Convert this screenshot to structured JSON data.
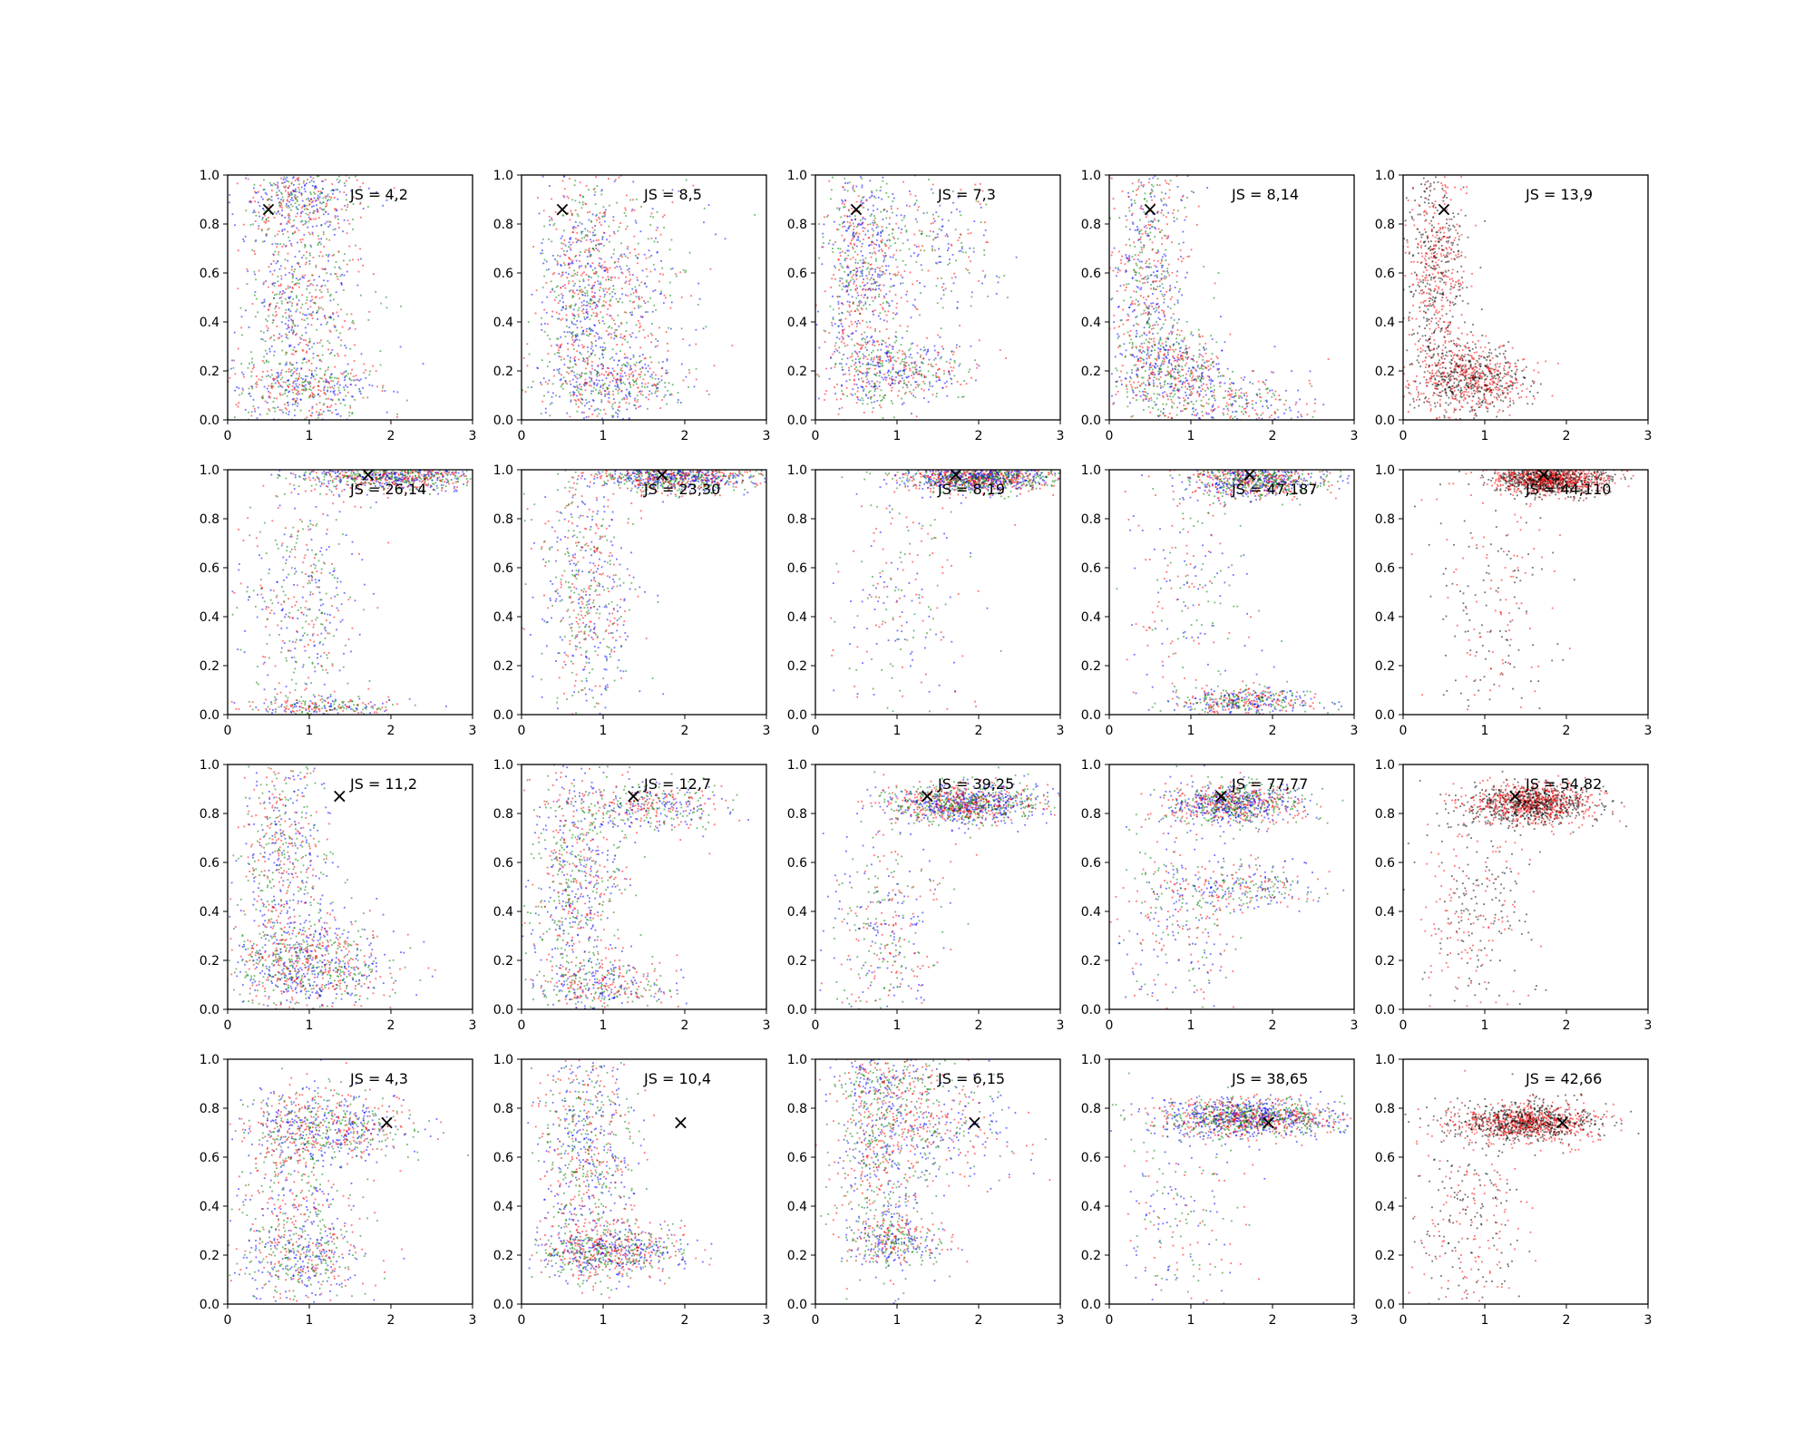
{
  "figure": {
    "background": "#ffffff",
    "series_colors": [
      "#0000ff",
      "#ff0000",
      "#008000",
      "#000000"
    ],
    "marker_symbol": "×"
  },
  "chart_data": [
    {
      "type": "scatter",
      "annotation": "JS = 4,2",
      "marker": [
        0.5,
        0.86
      ],
      "xlim": [
        0,
        3
      ],
      "ylim": [
        0,
        1
      ],
      "xticks": [
        "0",
        "1",
        "2",
        "3"
      ],
      "yticks": [
        "0.0",
        "0.2",
        "0.4",
        "0.6",
        "0.8",
        "1.0"
      ],
      "series_colors": [
        "#0000ff",
        "#ff0000",
        "#008000"
      ],
      "clusters": [
        {
          "cx": 0.9,
          "cy": 0.5,
          "sx": 0.35,
          "sy": 0.3,
          "share": 0.55
        },
        {
          "cx": 1.0,
          "cy": 0.13,
          "sx": 0.45,
          "sy": 0.07,
          "share": 0.25
        },
        {
          "cx": 0.9,
          "cy": 0.9,
          "sx": 0.4,
          "sy": 0.06,
          "share": 0.2
        }
      ]
    },
    {
      "type": "scatter",
      "annotation": "JS = 8,5",
      "marker": [
        0.5,
        0.86
      ],
      "xlim": [
        0,
        3
      ],
      "ylim": [
        0,
        1
      ],
      "xticks": [
        "0",
        "1",
        "2",
        "3"
      ],
      "yticks": [
        "0.0",
        "0.2",
        "0.4",
        "0.6",
        "0.8",
        "1.0"
      ],
      "series_colors": [
        "#0000ff",
        "#ff0000",
        "#008000"
      ],
      "clusters": [
        {
          "cx": 0.8,
          "cy": 0.5,
          "sx": 0.3,
          "sy": 0.3,
          "share": 0.6
        },
        {
          "cx": 1.1,
          "cy": 0.15,
          "sx": 0.45,
          "sy": 0.06,
          "share": 0.25
        },
        {
          "cx": 1.5,
          "cy": 0.55,
          "sx": 0.4,
          "sy": 0.2,
          "share": 0.15
        }
      ]
    },
    {
      "type": "scatter",
      "annotation": "JS = 7,3",
      "marker": [
        0.5,
        0.86
      ],
      "xlim": [
        0,
        3
      ],
      "ylim": [
        0,
        1
      ],
      "xticks": [
        "0",
        "1",
        "2",
        "3"
      ],
      "yticks": [
        "0.0",
        "0.2",
        "0.4",
        "0.6",
        "0.8",
        "1.0"
      ],
      "series_colors": [
        "#0000ff",
        "#ff0000",
        "#008000"
      ],
      "clusters": [
        {
          "cx": 0.6,
          "cy": 0.6,
          "sx": 0.25,
          "sy": 0.3,
          "share": 0.55
        },
        {
          "cx": 1.0,
          "cy": 0.2,
          "sx": 0.45,
          "sy": 0.07,
          "share": 0.3
        },
        {
          "cx": 1.5,
          "cy": 0.7,
          "sx": 0.4,
          "sy": 0.15,
          "share": 0.15
        }
      ]
    },
    {
      "type": "scatter",
      "annotation": "JS = 8,14",
      "marker": [
        0.5,
        0.86
      ],
      "xlim": [
        0,
        3
      ],
      "ylim": [
        0,
        1
      ],
      "xticks": [
        "0",
        "1",
        "2",
        "3"
      ],
      "yticks": [
        "0.0",
        "0.2",
        "0.4",
        "0.6",
        "0.8",
        "1.0"
      ],
      "series_colors": [
        "#0000ff",
        "#ff0000",
        "#008000"
      ],
      "clusters": [
        {
          "cx": 0.5,
          "cy": 0.6,
          "sx": 0.25,
          "sy": 0.3,
          "share": 0.5
        },
        {
          "cx": 0.8,
          "cy": 0.2,
          "sx": 0.35,
          "sy": 0.08,
          "share": 0.3
        },
        {
          "cx": 1.5,
          "cy": 0.08,
          "sx": 0.5,
          "sy": 0.06,
          "share": 0.2
        }
      ]
    },
    {
      "type": "scatter",
      "annotation": "JS = 13,9",
      "marker": [
        0.5,
        0.86
      ],
      "xlim": [
        0,
        3
      ],
      "ylim": [
        0,
        1
      ],
      "xticks": [
        "0",
        "1",
        "2",
        "3"
      ],
      "yticks": [
        "0.0",
        "0.2",
        "0.4",
        "0.6",
        "0.8",
        "1.0"
      ],
      "series_colors": [
        "#ff0000",
        "#000000"
      ],
      "clusters": [
        {
          "cx": 0.4,
          "cy": 0.6,
          "sx": 0.2,
          "sy": 0.25,
          "share": 0.45
        },
        {
          "cx": 0.8,
          "cy": 0.17,
          "sx": 0.35,
          "sy": 0.07,
          "share": 0.55
        }
      ]
    },
    {
      "type": "scatter",
      "annotation": "JS = 26,14",
      "marker": [
        1.72,
        0.98
      ],
      "xlim": [
        0,
        3
      ],
      "ylim": [
        0,
        1
      ],
      "xticks": [
        "0",
        "1",
        "2",
        "3"
      ],
      "yticks": [
        "0.0",
        "0.2",
        "0.4",
        "0.6",
        "0.8",
        "1.0"
      ],
      "series_colors": [
        "#0000ff",
        "#ff0000",
        "#008000"
      ],
      "clusters": [
        {
          "cx": 2.0,
          "cy": 0.97,
          "sx": 0.55,
          "sy": 0.03,
          "share": 0.55
        },
        {
          "cx": 0.9,
          "cy": 0.45,
          "sx": 0.35,
          "sy": 0.28,
          "share": 0.3
        },
        {
          "cx": 1.2,
          "cy": 0.03,
          "sx": 0.5,
          "sy": 0.02,
          "share": 0.15
        }
      ]
    },
    {
      "type": "scatter",
      "annotation": "JS = 23,30",
      "marker": [
        1.72,
        0.98
      ],
      "xlim": [
        0,
        3
      ],
      "ylim": [
        0,
        1
      ],
      "xticks": [
        "0",
        "1",
        "2",
        "3"
      ],
      "yticks": [
        "0.0",
        "0.2",
        "0.4",
        "0.6",
        "0.8",
        "1.0"
      ],
      "series_colors": [
        "#0000ff",
        "#ff0000",
        "#008000"
      ],
      "clusters": [
        {
          "cx": 1.9,
          "cy": 0.97,
          "sx": 0.5,
          "sy": 0.03,
          "share": 0.6
        },
        {
          "cx": 0.8,
          "cy": 0.5,
          "sx": 0.3,
          "sy": 0.28,
          "share": 0.4
        }
      ]
    },
    {
      "type": "scatter",
      "annotation": "JS = 8,19",
      "marker": [
        1.72,
        0.98
      ],
      "xlim": [
        0,
        3
      ],
      "ylim": [
        0,
        1
      ],
      "xticks": [
        "0",
        "1",
        "2",
        "3"
      ],
      "yticks": [
        "0.0",
        "0.2",
        "0.4",
        "0.6",
        "0.8",
        "1.0"
      ],
      "series_colors": [
        "#008000",
        "#0000ff",
        "#ff0000"
      ],
      "clusters": [
        {
          "cx": 2.0,
          "cy": 0.97,
          "sx": 0.45,
          "sy": 0.03,
          "share": 0.85
        },
        {
          "cx": 1.0,
          "cy": 0.5,
          "sx": 0.45,
          "sy": 0.3,
          "share": 0.15
        }
      ]
    },
    {
      "type": "scatter",
      "annotation": "JS = 47,187",
      "marker": [
        1.72,
        0.98
      ],
      "xlim": [
        0,
        3
      ],
      "ylim": [
        0,
        1
      ],
      "xticks": [
        "0",
        "1",
        "2",
        "3"
      ],
      "yticks": [
        "0.0",
        "0.2",
        "0.4",
        "0.6",
        "0.8",
        "1.0"
      ],
      "series_colors": [
        "#ff0000",
        "#0000ff",
        "#008000"
      ],
      "clusters": [
        {
          "cx": 1.8,
          "cy": 0.96,
          "sx": 0.4,
          "sy": 0.035,
          "share": 0.55
        },
        {
          "cx": 1.7,
          "cy": 0.05,
          "sx": 0.45,
          "sy": 0.03,
          "share": 0.3
        },
        {
          "cx": 1.0,
          "cy": 0.5,
          "sx": 0.4,
          "sy": 0.3,
          "share": 0.15
        }
      ]
    },
    {
      "type": "scatter",
      "annotation": "JS = 44,110",
      "marker": [
        1.72,
        0.98
      ],
      "xlim": [
        0,
        3
      ],
      "ylim": [
        0,
        1
      ],
      "xticks": [
        "0",
        "1",
        "2",
        "3"
      ],
      "yticks": [
        "0.0",
        "0.2",
        "0.4",
        "0.6",
        "0.8",
        "1.0"
      ],
      "series_colors": [
        "#ff0000",
        "#000000"
      ],
      "clusters": [
        {
          "cx": 1.8,
          "cy": 0.96,
          "sx": 0.35,
          "sy": 0.03,
          "share": 0.85
        },
        {
          "cx": 1.1,
          "cy": 0.4,
          "sx": 0.4,
          "sy": 0.3,
          "share": 0.15
        }
      ]
    },
    {
      "type": "scatter",
      "annotation": "JS = 11,2",
      "marker": [
        1.37,
        0.87
      ],
      "xlim": [
        0,
        3
      ],
      "ylim": [
        0,
        1
      ],
      "xticks": [
        "0",
        "1",
        "2",
        "3"
      ],
      "yticks": [
        "0.0",
        "0.2",
        "0.4",
        "0.6",
        "0.8",
        "1.0"
      ],
      "series_colors": [
        "#0000ff",
        "#ff0000",
        "#008000"
      ],
      "clusters": [
        {
          "cx": 0.7,
          "cy": 0.6,
          "sx": 0.3,
          "sy": 0.28,
          "share": 0.45
        },
        {
          "cx": 1.0,
          "cy": 0.17,
          "sx": 0.5,
          "sy": 0.09,
          "share": 0.55
        }
      ]
    },
    {
      "type": "scatter",
      "annotation": "JS = 12,7",
      "marker": [
        1.37,
        0.87
      ],
      "xlim": [
        0,
        3
      ],
      "ylim": [
        0,
        1
      ],
      "xticks": [
        "0",
        "1",
        "2",
        "3"
      ],
      "yticks": [
        "0.0",
        "0.2",
        "0.4",
        "0.6",
        "0.8",
        "1.0"
      ],
      "series_colors": [
        "#0000ff",
        "#ff0000",
        "#008000"
      ],
      "clusters": [
        {
          "cx": 0.7,
          "cy": 0.5,
          "sx": 0.3,
          "sy": 0.3,
          "share": 0.55
        },
        {
          "cx": 1.6,
          "cy": 0.83,
          "sx": 0.45,
          "sy": 0.05,
          "share": 0.25
        },
        {
          "cx": 1.0,
          "cy": 0.1,
          "sx": 0.4,
          "sy": 0.05,
          "share": 0.2
        }
      ]
    },
    {
      "type": "scatter",
      "annotation": "JS = 39,25",
      "marker": [
        1.37,
        0.87
      ],
      "xlim": [
        0,
        3
      ],
      "ylim": [
        0,
        1
      ],
      "xticks": [
        "0",
        "1",
        "2",
        "3"
      ],
      "yticks": [
        "0.0",
        "0.2",
        "0.4",
        "0.6",
        "0.8",
        "1.0"
      ],
      "series_colors": [
        "#0000ff",
        "#ff0000",
        "#008000"
      ],
      "clusters": [
        {
          "cx": 1.8,
          "cy": 0.84,
          "sx": 0.5,
          "sy": 0.04,
          "share": 0.75
        },
        {
          "cx": 0.9,
          "cy": 0.3,
          "sx": 0.35,
          "sy": 0.22,
          "share": 0.25
        }
      ]
    },
    {
      "type": "scatter",
      "annotation": "JS = 77,77",
      "marker": [
        1.37,
        0.87
      ],
      "xlim": [
        0,
        3
      ],
      "ylim": [
        0,
        1
      ],
      "xticks": [
        "0",
        "1",
        "2",
        "3"
      ],
      "yticks": [
        "0.0",
        "0.2",
        "0.4",
        "0.6",
        "0.8",
        "1.0"
      ],
      "series_colors": [
        "#0000ff",
        "#ff0000",
        "#008000"
      ],
      "clusters": [
        {
          "cx": 1.5,
          "cy": 0.84,
          "sx": 0.4,
          "sy": 0.04,
          "share": 0.6
        },
        {
          "cx": 1.6,
          "cy": 0.5,
          "sx": 0.45,
          "sy": 0.05,
          "share": 0.2
        },
        {
          "cx": 0.8,
          "cy": 0.35,
          "sx": 0.35,
          "sy": 0.25,
          "share": 0.2
        }
      ]
    },
    {
      "type": "scatter",
      "annotation": "JS = 54,82",
      "marker": [
        1.37,
        0.87
      ],
      "xlim": [
        0,
        3
      ],
      "ylim": [
        0,
        1
      ],
      "xticks": [
        "0",
        "1",
        "2",
        "3"
      ],
      "yticks": [
        "0.0",
        "0.2",
        "0.4",
        "0.6",
        "0.8",
        "1.0"
      ],
      "series_colors": [
        "#ff0000",
        "#000000"
      ],
      "clusters": [
        {
          "cx": 1.6,
          "cy": 0.84,
          "sx": 0.4,
          "sy": 0.04,
          "share": 0.8
        },
        {
          "cx": 0.9,
          "cy": 0.4,
          "sx": 0.35,
          "sy": 0.25,
          "share": 0.2
        }
      ]
    },
    {
      "type": "scatter",
      "annotation": "JS = 4,3",
      "marker": [
        1.95,
        0.74
      ],
      "xlim": [
        0,
        3
      ],
      "ylim": [
        0,
        1
      ],
      "xticks": [
        "0",
        "1",
        "2",
        "3"
      ],
      "yticks": [
        "0.0",
        "0.2",
        "0.4",
        "0.6",
        "0.8",
        "1.0"
      ],
      "series_colors": [
        "#0000ff",
        "#ff0000",
        "#008000"
      ],
      "clusters": [
        {
          "cx": 1.2,
          "cy": 0.72,
          "sx": 0.5,
          "sy": 0.07,
          "share": 0.45
        },
        {
          "cx": 0.8,
          "cy": 0.4,
          "sx": 0.35,
          "sy": 0.25,
          "share": 0.35
        },
        {
          "cx": 1.0,
          "cy": 0.18,
          "sx": 0.4,
          "sy": 0.07,
          "share": 0.2
        }
      ]
    },
    {
      "type": "scatter",
      "annotation": "JS = 10,4",
      "marker": [
        1.95,
        0.74
      ],
      "xlim": [
        0,
        3
      ],
      "ylim": [
        0,
        1
      ],
      "xticks": [
        "0",
        "1",
        "2",
        "3"
      ],
      "yticks": [
        "0.0",
        "0.2",
        "0.4",
        "0.6",
        "0.8",
        "1.0"
      ],
      "series_colors": [
        "#0000ff",
        "#ff0000",
        "#008000"
      ],
      "clusters": [
        {
          "cx": 0.8,
          "cy": 0.6,
          "sx": 0.3,
          "sy": 0.28,
          "share": 0.55
        },
        {
          "cx": 1.1,
          "cy": 0.22,
          "sx": 0.45,
          "sy": 0.05,
          "share": 0.45
        }
      ]
    },
    {
      "type": "scatter",
      "annotation": "JS = 6,15",
      "marker": [
        1.95,
        0.74
      ],
      "xlim": [
        0,
        3
      ],
      "ylim": [
        0,
        1
      ],
      "xticks": [
        "0",
        "1",
        "2",
        "3"
      ],
      "yticks": [
        "0.0",
        "0.2",
        "0.4",
        "0.6",
        "0.8",
        "1.0"
      ],
      "series_colors": [
        "#0000ff",
        "#ff0000",
        "#008000"
      ],
      "clusters": [
        {
          "cx": 0.8,
          "cy": 0.6,
          "sx": 0.3,
          "sy": 0.25,
          "share": 0.45
        },
        {
          "cx": 1.0,
          "cy": 0.25,
          "sx": 0.3,
          "sy": 0.05,
          "share": 0.2
        },
        {
          "cx": 1.5,
          "cy": 0.7,
          "sx": 0.45,
          "sy": 0.1,
          "share": 0.2
        },
        {
          "cx": 0.9,
          "cy": 0.92,
          "sx": 0.4,
          "sy": 0.05,
          "share": 0.15
        }
      ]
    },
    {
      "type": "scatter",
      "annotation": "JS = 38,65",
      "marker": [
        1.95,
        0.74
      ],
      "xlim": [
        0,
        3
      ],
      "ylim": [
        0,
        1
      ],
      "xticks": [
        "0",
        "1",
        "2",
        "3"
      ],
      "yticks": [
        "0.0",
        "0.2",
        "0.4",
        "0.6",
        "0.8",
        "1.0"
      ],
      "series_colors": [
        "#0000ff",
        "#008000",
        "#ff0000"
      ],
      "clusters": [
        {
          "cx": 1.7,
          "cy": 0.76,
          "sx": 0.55,
          "sy": 0.04,
          "share": 0.85
        },
        {
          "cx": 0.9,
          "cy": 0.35,
          "sx": 0.4,
          "sy": 0.25,
          "share": 0.15
        }
      ]
    },
    {
      "type": "scatter",
      "annotation": "JS = 42,66",
      "marker": [
        1.95,
        0.74
      ],
      "xlim": [
        0,
        3
      ],
      "ylim": [
        0,
        1
      ],
      "xticks": [
        "0",
        "1",
        "2",
        "3"
      ],
      "yticks": [
        "0.0",
        "0.2",
        "0.4",
        "0.6",
        "0.8",
        "1.0"
      ],
      "series_colors": [
        "#ff0000",
        "#000000"
      ],
      "clusters": [
        {
          "cx": 1.5,
          "cy": 0.74,
          "sx": 0.45,
          "sy": 0.04,
          "share": 0.8
        },
        {
          "cx": 0.8,
          "cy": 0.35,
          "sx": 0.35,
          "sy": 0.25,
          "share": 0.2
        }
      ]
    }
  ]
}
